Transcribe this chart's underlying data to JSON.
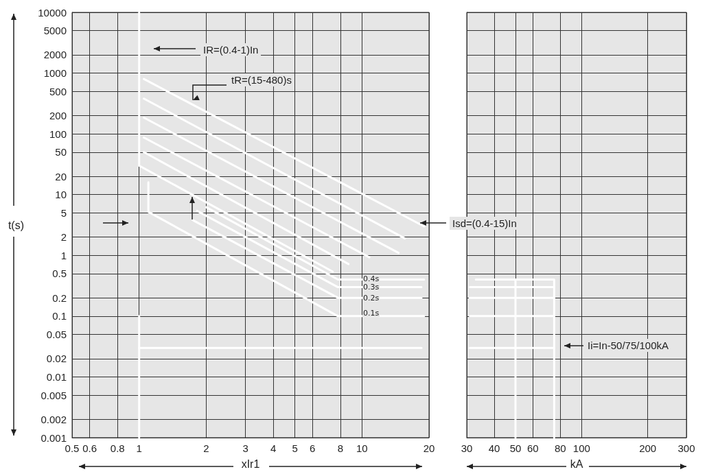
{
  "chart_data": [
    {
      "type": "line",
      "xlabel": "xIr1",
      "ylabel": "t(s)",
      "log": "xy",
      "grid": true,
      "marker": "none",
      "xlim": [
        0.5,
        20
      ],
      "xticks": [
        0.5,
        0.6,
        0.8,
        1,
        2,
        3,
        4,
        5,
        6,
        8,
        10,
        20
      ],
      "ylim": [
        0.001,
        10000
      ],
      "yticks": [
        0.001,
        0.002,
        0.005,
        0.01,
        0.02,
        0.05,
        0.1,
        0.2,
        0.5,
        1,
        2,
        5,
        10,
        20,
        50,
        100,
        200,
        500,
        1000,
        2000,
        5000,
        10000
      ],
      "series": [
        {
          "color": "#ffffff",
          "x": [
            1,
            1,
            7.4
          ],
          "values": [
            10000,
            30,
            0.54
          ]
        },
        {
          "color": "#ffffff",
          "x": [
            1.05,
            19
          ],
          "values": [
            800,
            3
          ]
        },
        {
          "color": "#ffffff",
          "x": [
            1.05,
            15.6
          ],
          "values": [
            380,
            1.9
          ]
        },
        {
          "color": "#ffffff",
          "x": [
            1.05,
            14.6
          ],
          "values": [
            185,
            1.1
          ]
        },
        {
          "color": "#ffffff",
          "x": [
            1.05,
            10.8
          ],
          "values": [
            87,
            0.93
          ]
        },
        {
          "color": "#ffffff",
          "x": [
            1.05,
            8.7
          ],
          "values": [
            50,
            0.72
          ]
        },
        {
          "color": "#ffffff",
          "x": [
            1.1,
            1.1,
            7.8,
            19
          ],
          "values": [
            16,
            5.2,
            0.1,
            0.1
          ]
        },
        {
          "color": "#ffffff",
          "x": [
            1.74,
            7.8,
            18.5
          ],
          "values": [
            3.8,
            0.2,
            0.2
          ]
        },
        {
          "color": "#ffffff",
          "x": [
            1.82,
            7.8,
            18.5
          ],
          "values": [
            5.4,
            0.3,
            0.3
          ]
        },
        {
          "color": "#ffffff",
          "x": [
            2,
            7.8,
            19
          ],
          "values": [
            6.2,
            0.4,
            0.4
          ]
        },
        {
          "color": "#ffffff",
          "x": [
            1,
            1
          ],
          "values": [
            0.1,
            0.001
          ]
        },
        {
          "color": "#ffffff",
          "x": [
            1,
            18.5
          ],
          "values": [
            0.03,
            0.03
          ]
        }
      ],
      "annotations": [
        "IR=(0.4-1)In",
        "tR=(15-480)s",
        "Isd=(0.4-15)In",
        "0.4s",
        "0.3s",
        "0.2s",
        "0.1s"
      ]
    },
    {
      "type": "line",
      "xlabel": "kA",
      "log": "xy",
      "grid": true,
      "marker": "none",
      "tick_labels": "x",
      "xlim": [
        30,
        300
      ],
      "xticks": [
        30,
        40,
        50,
        60,
        80,
        100,
        200,
        300
      ],
      "ylim": [
        0.001,
        10000
      ],
      "yticks": [
        0.001,
        0.002,
        0.005,
        0.01,
        0.02,
        0.05,
        0.1,
        0.2,
        0.5,
        1,
        2,
        5,
        10,
        20,
        50,
        100,
        200,
        500,
        1000,
        2000,
        5000,
        10000
      ],
      "series": [
        {
          "color": "#ffffff",
          "x": [
            33,
            75,
            75
          ],
          "values": [
            0.4,
            0.4,
            0.001
          ]
        },
        {
          "color": "#ffffff",
          "x": [
            50,
            50
          ],
          "values": [
            0.4,
            0.001
          ]
        },
        {
          "color": "#ffffff",
          "x": [
            31,
            75
          ],
          "values": [
            0.3,
            0.3
          ]
        },
        {
          "color": "#ffffff",
          "x": [
            31,
            75
          ],
          "values": [
            0.2,
            0.2
          ]
        },
        {
          "color": "#ffffff",
          "x": [
            31,
            75
          ],
          "values": [
            0.1,
            0.1
          ]
        },
        {
          "color": "#ffffff",
          "x": [
            31,
            75
          ],
          "values": [
            0.03,
            0.03
          ]
        }
      ],
      "annotations": [
        "Ii=In-50/75/100kA"
      ]
    }
  ]
}
